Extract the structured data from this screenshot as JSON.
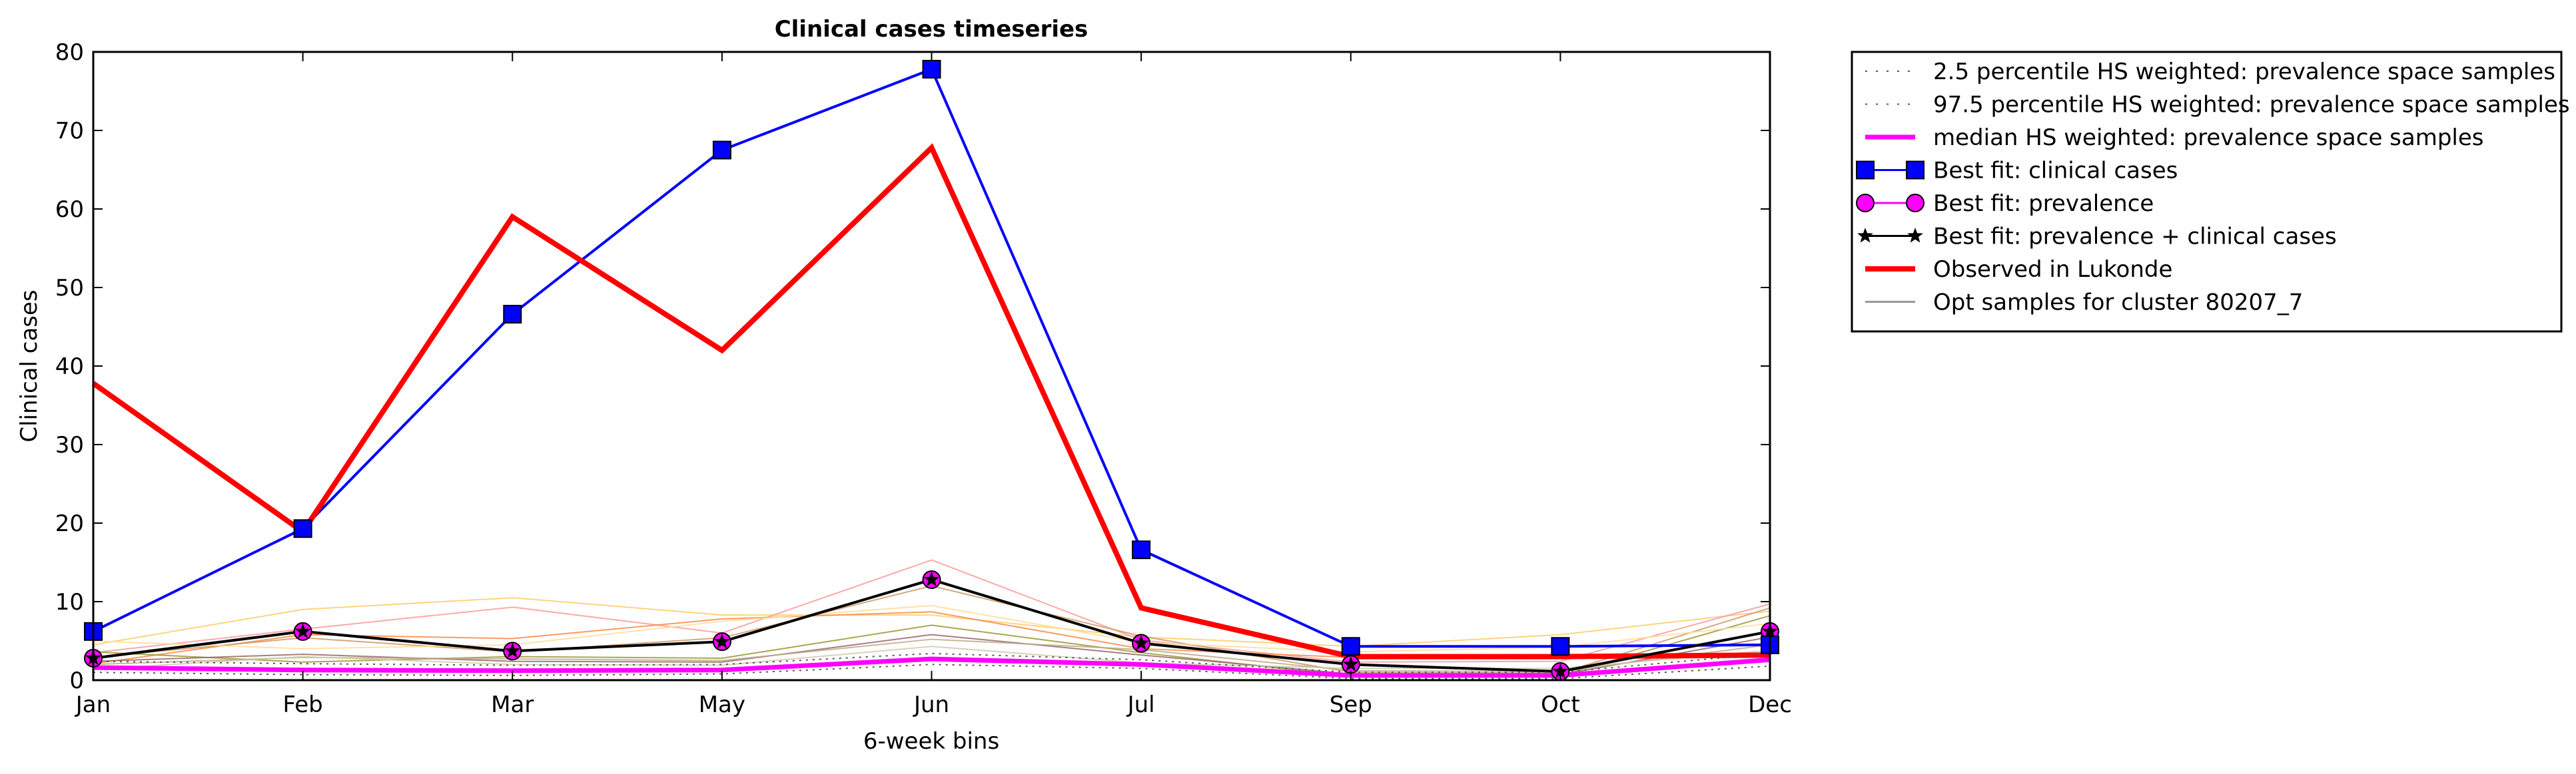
{
  "chart_data": {
    "type": "line",
    "title": "Clinical cases timeseries",
    "xlabel": "6-week bins",
    "ylabel": "Clinical cases",
    "categories": [
      "Jan",
      "Feb",
      "Mar",
      "May",
      "Jun",
      "Jul",
      "Sep",
      "Oct",
      "Dec"
    ],
    "ylim": [
      0,
      80
    ],
    "yticks": [
      0,
      10,
      20,
      30,
      40,
      50,
      60,
      70,
      80
    ],
    "grid": false,
    "legend_placement": "outside-top-right",
    "legend": [
      {
        "label": "2.5 percentile HS weighted: prevalence space samples",
        "style": "dotted",
        "color": "#555555",
        "marker": "none"
      },
      {
        "label": "97.5 percentile HS weighted: prevalence space samples",
        "style": "dotted",
        "color": "#555555",
        "marker": "none"
      },
      {
        "label": "median HS weighted: prevalence space samples",
        "style": "solid",
        "color": "#ff00ff",
        "marker": "none"
      },
      {
        "label": "Best fit: clinical cases",
        "style": "solid",
        "color": "#0000ff",
        "marker": "square"
      },
      {
        "label": "Best fit: prevalence",
        "style": "solid",
        "color": "#ff00ff",
        "marker": "circle"
      },
      {
        "label": "Best fit: prevalence + clinical cases",
        "style": "solid",
        "color": "#000000",
        "marker": "star"
      },
      {
        "label": "Observed in Lukonde",
        "style": "solid",
        "color": "#ff0000",
        "marker": "none"
      },
      {
        "label": "Opt samples for cluster 80207_7",
        "style": "solid",
        "color": "#999999",
        "marker": "none"
      }
    ],
    "series": [
      {
        "name": "Best fit: clinical cases",
        "color": "#0000ff",
        "marker": "square",
        "width": 4,
        "values": [
          6.2,
          19.3,
          46.6,
          67.5,
          77.8,
          16.6,
          4.3,
          4.3,
          4.5
        ]
      },
      {
        "name": "Observed in Lukonde",
        "color": "#ff0000",
        "marker": "none",
        "width": 8,
        "values": [
          37.8,
          18.9,
          59.0,
          42.0,
          67.8,
          9.2,
          3.0,
          3.0,
          3.2
        ]
      },
      {
        "name": "Best fit: prevalence + clinical cases",
        "color": "#000000",
        "marker": "star",
        "width": 4,
        "values": [
          2.8,
          6.2,
          3.7,
          4.9,
          12.8,
          4.7,
          2.0,
          1.1,
          6.2
        ]
      },
      {
        "name": "Best fit: prevalence",
        "color": "#ff00ff",
        "marker": "circle",
        "width": 0,
        "values": [
          2.8,
          6.2,
          3.7,
          4.9,
          12.8,
          4.7,
          2.0,
          1.1,
          6.2
        ]
      },
      {
        "name": "median HS weighted: prevalence space samples",
        "color": "#ff00ff",
        "marker": "none",
        "width": 7,
        "values": [
          1.6,
          1.3,
          1.2,
          1.3,
          2.7,
          2.0,
          0.6,
          0.6,
          2.6
        ]
      },
      {
        "name": "2.5 percentile HS weighted: prevalence space samples",
        "color": "#555555",
        "marker": "none",
        "width": 2,
        "dash": "3,7",
        "values": [
          1.0,
          0.7,
          0.6,
          0.8,
          2.0,
          1.5,
          0.2,
          0.2,
          1.8
        ]
      },
      {
        "name": "97.5 percentile HS weighted: prevalence space samples",
        "color": "#555555",
        "marker": "none",
        "width": 2,
        "dash": "3,7",
        "values": [
          2.4,
          2.1,
          1.9,
          2.0,
          3.4,
          2.6,
          1.0,
          1.0,
          3.4
        ]
      }
    ],
    "opt_samples": [
      {
        "color": "#ffcc66",
        "values": [
          4.5,
          9.0,
          10.5,
          8.3,
          8.3,
          5.5,
          4.3,
          5.8,
          8.8
        ]
      },
      {
        "color": "#ff9999",
        "values": [
          3.5,
          6.5,
          9.3,
          6.0,
          15.3,
          5.1,
          2.3,
          2.4,
          9.7
        ]
      },
      {
        "color": "#ff8844",
        "values": [
          2.1,
          5.8,
          5.3,
          7.8,
          8.7,
          4.0,
          2.9,
          3.0,
          3.2
        ]
      },
      {
        "color": "#cc9966",
        "values": [
          2.9,
          5.4,
          3.6,
          5.4,
          12.0,
          5.6,
          1.0,
          0.9,
          9.2
        ]
      },
      {
        "color": "#999933",
        "values": [
          3.6,
          2.3,
          3.0,
          2.8,
          7.0,
          3.5,
          0.5,
          0.6,
          8.2
        ]
      },
      {
        "color": "#996666",
        "values": [
          2.4,
          3.3,
          2.4,
          2.3,
          5.8,
          3.2,
          0.8,
          0.7,
          5.5
        ]
      },
      {
        "color": "#bbaa88",
        "values": [
          2.0,
          2.9,
          2.7,
          2.5,
          5.2,
          3.9,
          1.2,
          1.1,
          4.5
        ]
      },
      {
        "color": "#ffdd99",
        "values": [
          5.0,
          4.0,
          4.5,
          7.5,
          9.5,
          4.8,
          3.6,
          4.2,
          7.2
        ]
      },
      {
        "color": "#ccccaa",
        "values": [
          1.4,
          3.0,
          2.0,
          1.9,
          4.3,
          2.2,
          1.5,
          1.5,
          3.8
        ]
      }
    ]
  }
}
